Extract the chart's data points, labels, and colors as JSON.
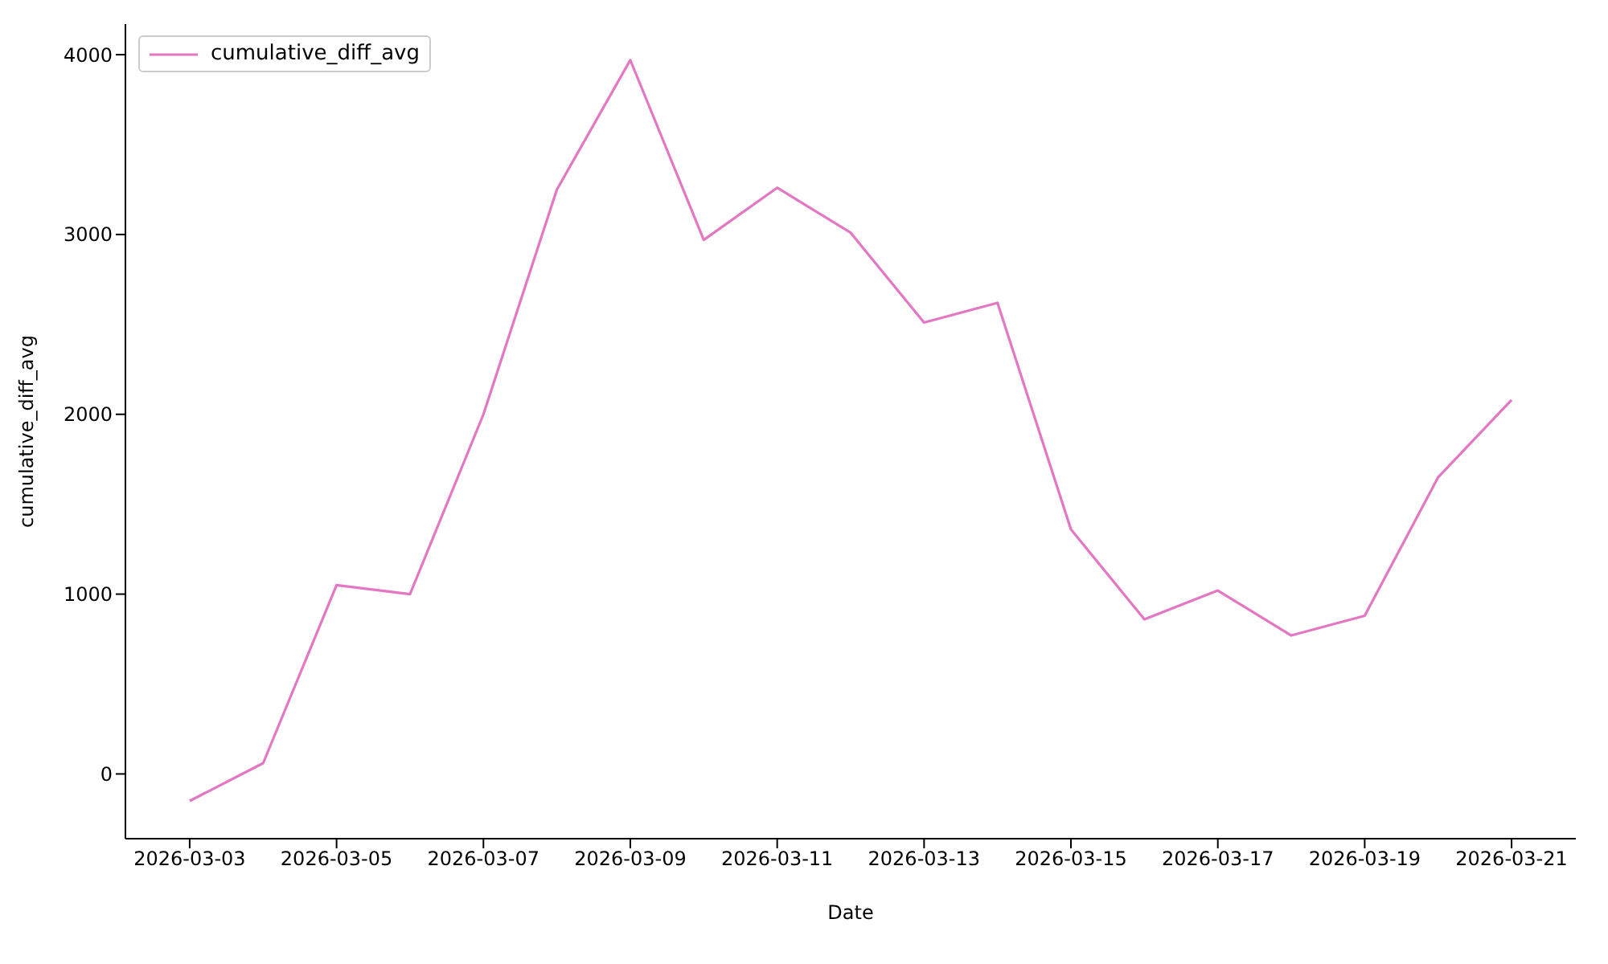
{
  "chart_data": {
    "type": "line",
    "xlabel": "Date",
    "ylabel": "cumulative_diff_avg",
    "x": [
      "2026-03-03",
      "2026-03-04",
      "2026-03-05",
      "2026-03-06",
      "2026-03-07",
      "2026-03-08",
      "2026-03-09",
      "2026-03-10",
      "2026-03-11",
      "2026-03-12",
      "2026-03-13",
      "2026-03-14",
      "2026-03-15",
      "2026-03-16",
      "2026-03-17",
      "2026-03-18",
      "2026-03-19",
      "2026-03-20",
      "2026-03-21"
    ],
    "series": [
      {
        "name": "cumulative_diff_avg",
        "color": "#e377c2",
        "values": [
          -150,
          60,
          1050,
          1000,
          2000,
          3250,
          3970,
          2970,
          3260,
          3010,
          2510,
          2620,
          1360,
          860,
          1020,
          770,
          880,
          1650,
          2080
        ]
      }
    ],
    "xlim": [
      "2026-03-02T03:00",
      "2026-03-21T21:00"
    ],
    "xticks": [
      "2026-03-03",
      "2026-03-05",
      "2026-03-07",
      "2026-03-09",
      "2026-03-11",
      "2026-03-13",
      "2026-03-15",
      "2026-03-17",
      "2026-03-19",
      "2026-03-21"
    ],
    "ylim": [
      -360,
      4170
    ],
    "yticks": [
      0,
      1000,
      2000,
      3000,
      4000
    ],
    "grid": false,
    "legend": "top left",
    "marker": "none",
    "line_style": "solid"
  }
}
